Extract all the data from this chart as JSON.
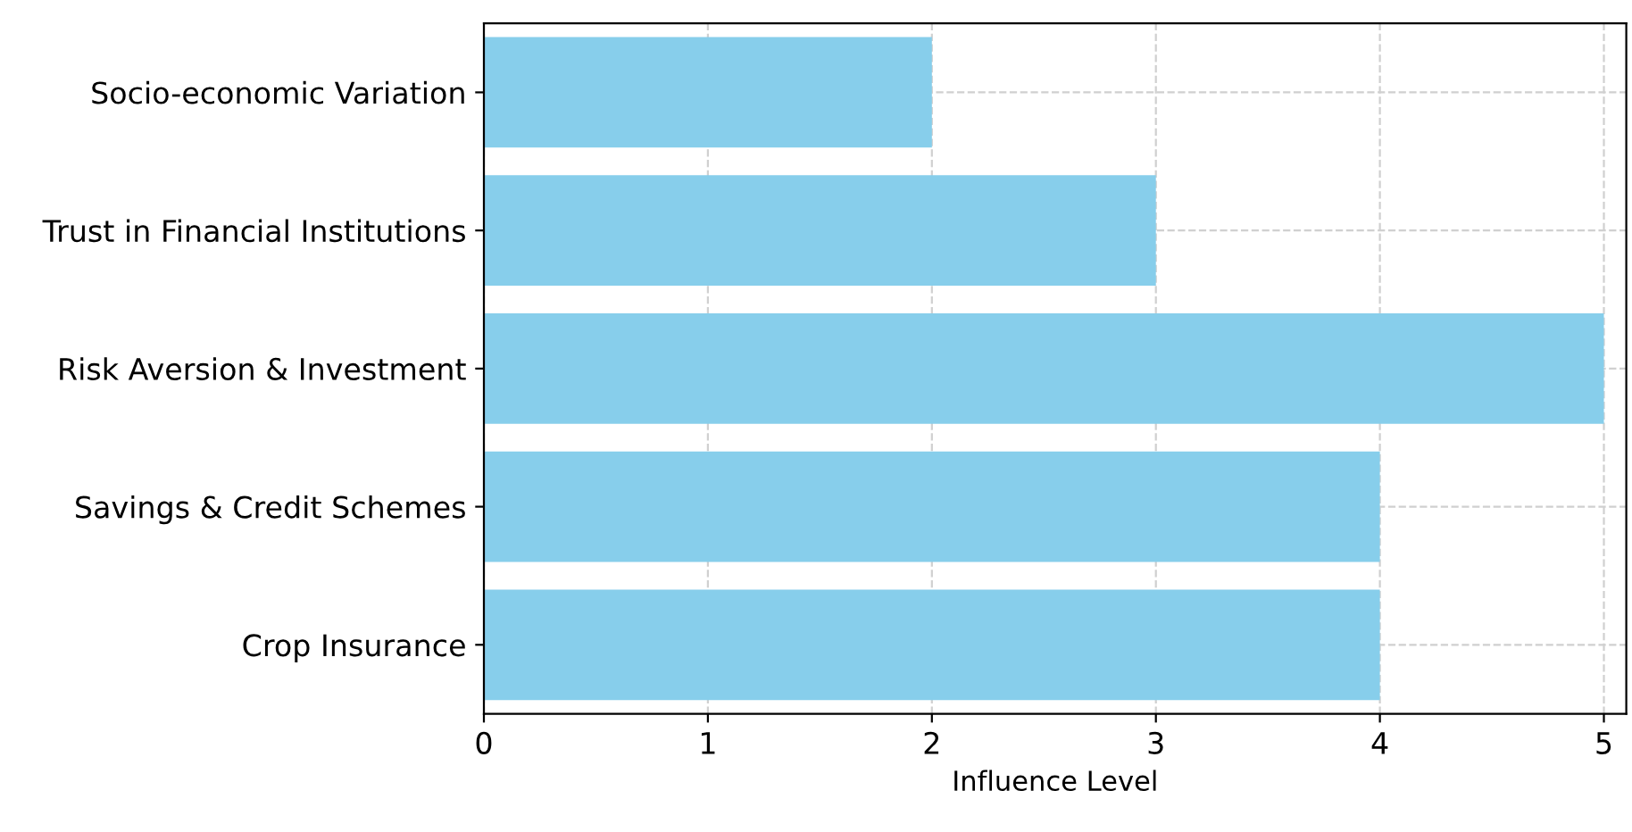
{
  "chart_data": {
    "type": "bar",
    "orientation": "horizontal",
    "xlabel": "Influence Level",
    "categories": [
      "Socio-economic Variation",
      "Trust in Financial Institutions",
      "Risk Aversion & Investment",
      "Savings & Credit Schemes",
      "Crop Insurance"
    ],
    "values": [
      2,
      3,
      5,
      4,
      4
    ],
    "color": "#87ceeb",
    "xlim": [
      0,
      5.1
    ],
    "xticks": [
      0,
      1,
      2,
      3,
      4,
      5
    ],
    "grid": true
  }
}
